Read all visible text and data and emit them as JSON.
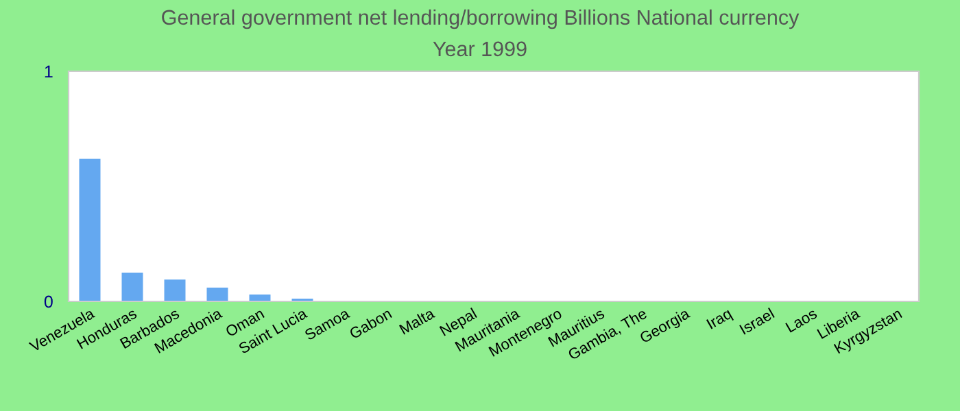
{
  "chart_data": {
    "type": "bar",
    "title": "General government net lending/borrowing Billions National currency",
    "subtitle": "Year 1999",
    "categories": [
      "Venezuela",
      "Honduras",
      "Barbados",
      "Macedonia",
      "Oman",
      "Saint Lucia",
      "Samoa",
      "Gabon",
      "Malta",
      "Nepal",
      "Mauritania",
      "Montenegro",
      "Mauritius",
      "Gambia, The",
      "Georgia",
      "Iraq",
      "Israel",
      "Laos",
      "Liberia",
      "Kyrgyzstan"
    ],
    "values": [
      0.62,
      0.125,
      0.095,
      0.06,
      0.03,
      0.012,
      0,
      0,
      0,
      0,
      0,
      0,
      0,
      0,
      0,
      0,
      0,
      0,
      0,
      0
    ],
    "color": "#64a8f0",
    "ylim": [
      0,
      1
    ],
    "yticks": [
      0,
      1
    ],
    "grid": false,
    "legend": false
  }
}
